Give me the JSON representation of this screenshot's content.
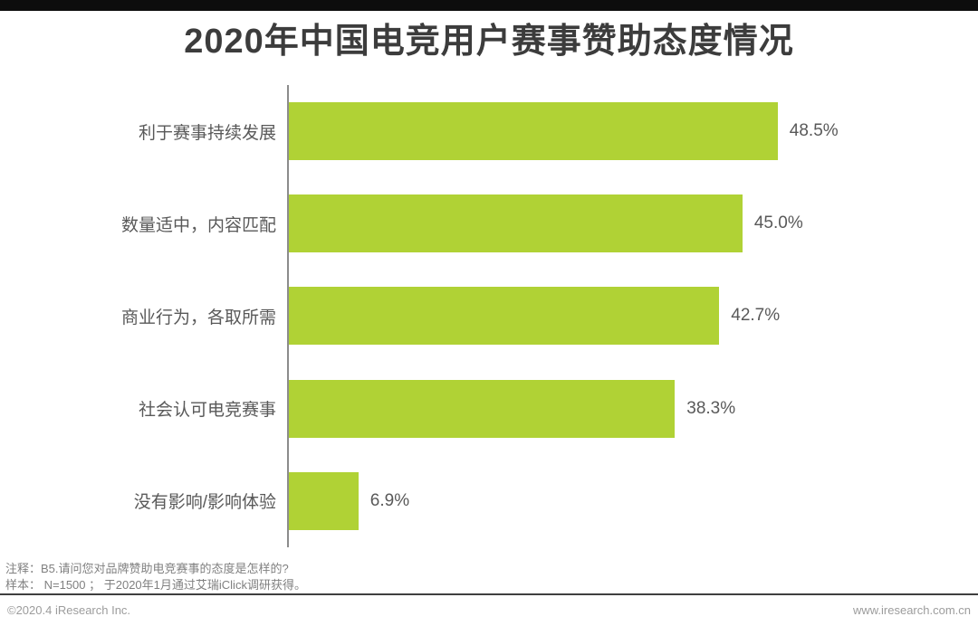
{
  "page": {
    "title": "2020年中国电竞用户赛事赞助态度情况"
  },
  "chart_data": {
    "type": "bar",
    "orientation": "horizontal",
    "title": "2020年中国电竞用户赛事赞助态度情况",
    "categories": [
      "利于赛事持续发展",
      "数量适中，内容匹配",
      "商业行为，各取所需",
      "社会认可电竞赛事",
      "没有影响/影响体验"
    ],
    "values": [
      48.5,
      45.0,
      42.7,
      38.3,
      6.9
    ],
    "value_labels": [
      "48.5%",
      "45.0%",
      "42.7%",
      "38.3%",
      "6.9%"
    ],
    "bar_color": "#b0d235",
    "xlim": [
      0,
      63
    ],
    "grid": false,
    "legend": "none",
    "value_label_position": "right-of-bar"
  },
  "footer": {
    "note_line1": "注释：B5.请问您对品牌赞助电竞赛事的态度是怎样的?",
    "note_line2": "样本： N=1500 ； 于2020年1月通过艾瑞iClick调研获得。",
    "copyright": "©2020.4 iResearch Inc.",
    "website": "www.iresearch.com.cn"
  }
}
